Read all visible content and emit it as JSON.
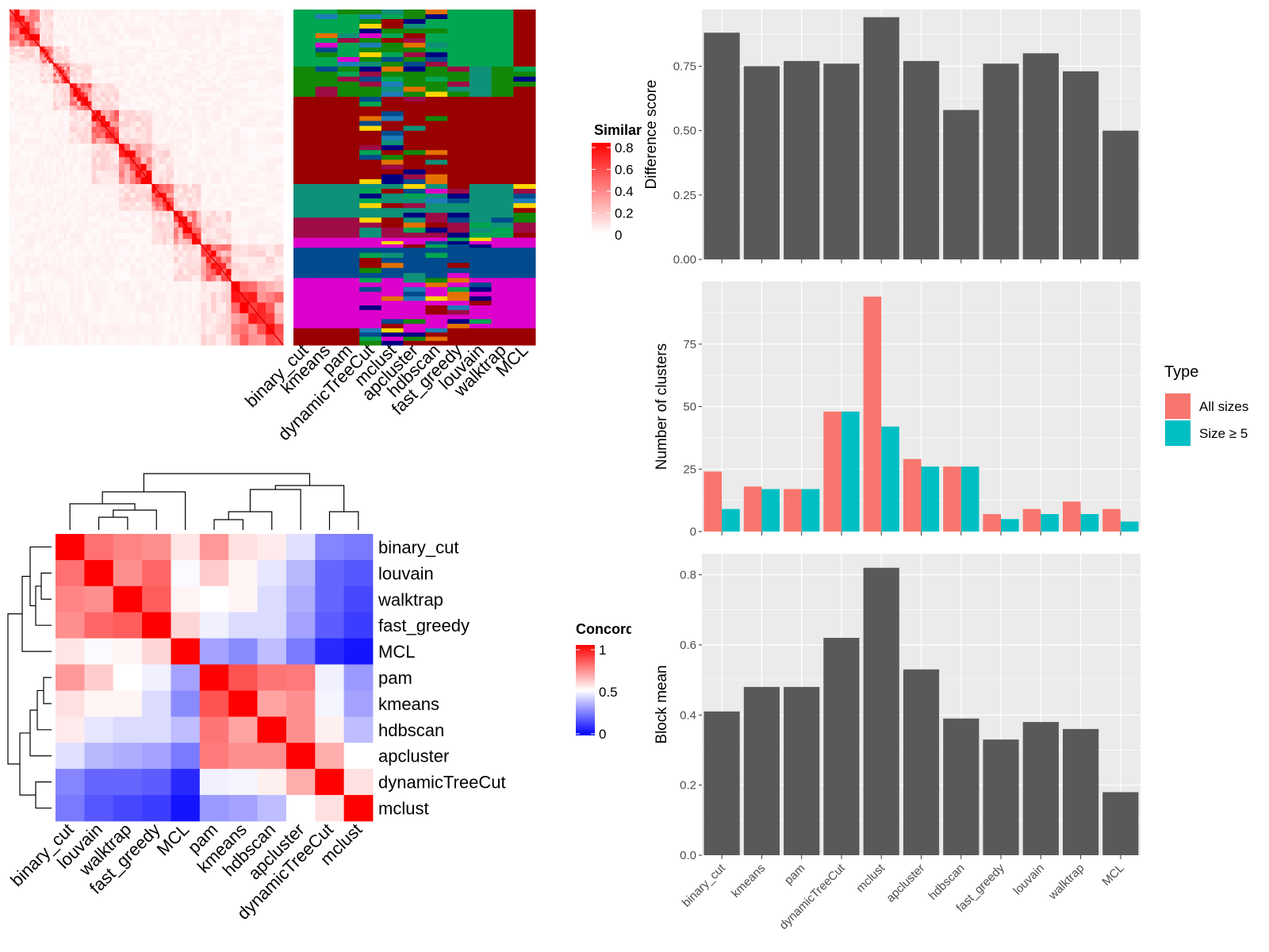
{
  "similarity_legend": {
    "title": "Similarity",
    "ticks": [
      "0.8",
      "0.6",
      "0.4",
      "0.2",
      "0"
    ],
    "colors": [
      "#ffffff",
      "#ff0000"
    ]
  },
  "concordance_legend": {
    "title": "Concordance",
    "ticks": [
      "1",
      "0.5",
      "0"
    ],
    "colors": [
      "#0000ff",
      "#ffffff",
      "#ff0000"
    ]
  },
  "type_legend": {
    "title": "Type",
    "items": [
      {
        "label": "All sizes",
        "color": "#F8766D"
      },
      {
        "label": "Size ≥ 5",
        "color": "#00BFC4"
      }
    ]
  },
  "chart_data": [
    {
      "type": "heatmap",
      "name": "similarity-matrix",
      "legend_title": "Similarity",
      "value_range": [
        0,
        0.8
      ],
      "colors": [
        "#ffffff",
        "#ff0000"
      ]
    },
    {
      "type": "heatmap",
      "name": "cluster-membership",
      "columns": [
        "binary_cut",
        "kmeans",
        "pam",
        "dynamicTreeCut",
        "mclust",
        "apcluster",
        "hdbscan",
        "fast_greedy",
        "louvain",
        "walktrap",
        "MCL"
      ],
      "palette": [
        "#00A651",
        "#138808",
        "#990000",
        "#0F9078",
        "#9E0B46",
        "#DD00CC",
        "#004B8D",
        "#000080",
        "#E47200",
        "#1E7DB8",
        "#FFD700"
      ]
    },
    {
      "type": "heatmap",
      "name": "concordance-matrix",
      "legend_title": "Concordance",
      "rows": [
        "binary_cut",
        "louvain",
        "walktrap",
        "fast_greedy",
        "MCL",
        "pam",
        "kmeans",
        "hdbscan",
        "apcluster",
        "dynamicTreeCut",
        "mclust"
      ],
      "columns": [
        "binary_cut",
        "louvain",
        "walktrap",
        "fast_greedy",
        "MCL",
        "pam",
        "kmeans",
        "hdbscan",
        "apcluster",
        "dynamicTreeCut",
        "mclust"
      ],
      "values": [
        [
          1.0,
          0.78,
          0.74,
          0.72,
          0.55,
          0.7,
          0.56,
          0.54,
          0.44,
          0.26,
          0.24
        ],
        [
          0.78,
          1.0,
          0.72,
          0.8,
          0.49,
          0.6,
          0.52,
          0.45,
          0.36,
          0.2,
          0.17
        ],
        [
          0.74,
          0.72,
          1.0,
          0.82,
          0.52,
          0.5,
          0.52,
          0.43,
          0.34,
          0.2,
          0.14
        ],
        [
          0.72,
          0.8,
          0.82,
          1.0,
          0.58,
          0.47,
          0.43,
          0.43,
          0.32,
          0.18,
          0.12
        ],
        [
          0.55,
          0.49,
          0.52,
          0.58,
          1.0,
          0.32,
          0.27,
          0.37,
          0.24,
          0.08,
          0.04
        ],
        [
          0.7,
          0.6,
          0.5,
          0.47,
          0.32,
          1.0,
          0.84,
          0.77,
          0.76,
          0.47,
          0.3
        ],
        [
          0.56,
          0.52,
          0.52,
          0.43,
          0.27,
          0.84,
          1.0,
          0.68,
          0.72,
          0.48,
          0.32
        ],
        [
          0.54,
          0.45,
          0.43,
          0.43,
          0.37,
          0.77,
          0.68,
          1.0,
          0.72,
          0.53,
          0.37
        ],
        [
          0.44,
          0.36,
          0.34,
          0.32,
          0.24,
          0.76,
          0.72,
          0.72,
          1.0,
          0.66,
          0.5
        ],
        [
          0.26,
          0.2,
          0.2,
          0.18,
          0.08,
          0.47,
          0.48,
          0.53,
          0.66,
          1.0,
          0.56
        ],
        [
          0.24,
          0.17,
          0.14,
          0.12,
          0.04,
          0.3,
          0.32,
          0.37,
          0.5,
          0.56,
          1.0
        ]
      ],
      "value_range": [
        0,
        1
      ],
      "colors": [
        "#0000ff",
        "#ffffff",
        "#ff0000"
      ]
    },
    {
      "type": "bar",
      "name": "difference-score",
      "categories": [
        "binary_cut",
        "kmeans",
        "pam",
        "dynamicTreeCut",
        "mclust",
        "apcluster",
        "hdbscan",
        "fast_greedy",
        "louvain",
        "walktrap",
        "MCL"
      ],
      "values": [
        0.88,
        0.75,
        0.77,
        0.76,
        0.94,
        0.77,
        0.58,
        0.76,
        0.8,
        0.73,
        0.5
      ],
      "xlabel": "",
      "ylabel": "Difference score",
      "ylim": [
        0,
        0.97
      ],
      "yticks": [
        "0.00",
        "0.25",
        "0.50",
        "0.75"
      ],
      "grid": true
    },
    {
      "type": "bar",
      "name": "number-of-clusters",
      "categories": [
        "binary_cut",
        "kmeans",
        "pam",
        "dynamicTreeCut",
        "mclust",
        "apcluster",
        "hdbscan",
        "fast_greedy",
        "louvain",
        "walktrap",
        "MCL"
      ],
      "series": [
        {
          "name": "All sizes",
          "color": "#F8766D",
          "values": [
            24,
            18,
            17,
            48,
            94,
            29,
            26,
            7,
            9,
            12,
            9
          ]
        },
        {
          "name": "Size ≥ 5",
          "color": "#00BFC4",
          "values": [
            9,
            17,
            17,
            48,
            42,
            26,
            26,
            5,
            7,
            7,
            4
          ]
        }
      ],
      "xlabel": "",
      "ylabel": "Number of clusters",
      "ylim": [
        0,
        100
      ],
      "yticks": [
        "0",
        "25",
        "50",
        "75"
      ],
      "grid": true,
      "legend": "right"
    },
    {
      "type": "bar",
      "name": "block-mean",
      "categories": [
        "binary_cut",
        "kmeans",
        "pam",
        "dynamicTreeCut",
        "mclust",
        "apcluster",
        "hdbscan",
        "fast_greedy",
        "louvain",
        "walktrap",
        "MCL"
      ],
      "values": [
        0.41,
        0.48,
        0.48,
        0.62,
        0.82,
        0.53,
        0.39,
        0.33,
        0.38,
        0.36,
        0.18
      ],
      "xlabel": "",
      "ylabel": "Block mean",
      "ylim": [
        0,
        0.86
      ],
      "yticks": [
        "0.0",
        "0.2",
        "0.4",
        "0.6",
        "0.8"
      ],
      "grid": true
    }
  ]
}
